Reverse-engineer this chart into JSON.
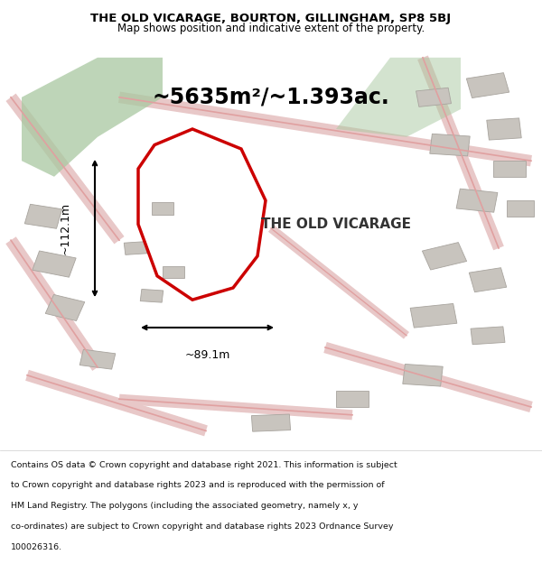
{
  "title_line1": "THE OLD VICARAGE, BOURTON, GILLINGHAM, SP8 5BJ",
  "title_line2": "Map shows position and indicative extent of the property.",
  "area_text": "~5635m²/~1.393ac.",
  "property_label": "THE OLD VICARAGE",
  "dim_horizontal": "~89.1m",
  "dim_vertical": "~112.1m",
  "footer_lines": [
    "Contains OS data © Crown copyright and database right 2021. This information is subject",
    "to Crown copyright and database rights 2023 and is reproduced with the permission of",
    "HM Land Registry. The polygons (including the associated geometry, namely x, y",
    "co-ordinates) are subject to Crown copyright and database rights 2023 Ordnance Survey",
    "100026316."
  ],
  "map_bg": "#f5f2ee",
  "property_edge": "#cc0000",
  "road_color": "#e8c8c8",
  "road_edge": "#e0a0a0",
  "green_color": "#a8c8a0",
  "building_color": "#c8c4be",
  "building_edge": "#a8a49e",
  "title_bg": "#ffffff",
  "footer_bg": "#ffffff",
  "text_color": "#111111"
}
